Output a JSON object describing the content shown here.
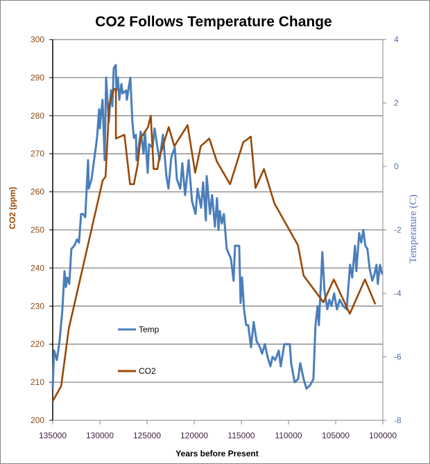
{
  "chart_data": {
    "type": "line",
    "title": "CO2 Follows Temperature Change",
    "xlabel": "Years before Present",
    "ylabel": "CO2 (ppm)",
    "y2label": "Temperature (C)",
    "xlim": [
      135000,
      100000
    ],
    "ylim": [
      200,
      300
    ],
    "y2lim": [
      -8,
      4
    ],
    "x_ticks": [
      "135000",
      "130000",
      "125000",
      "120000",
      "115000",
      "110000",
      "105000",
      "100000"
    ],
    "y_ticks": [
      "200",
      "210",
      "220",
      "230",
      "240",
      "250",
      "260",
      "270",
      "280",
      "290",
      "300"
    ],
    "y2_ticks": [
      "-8",
      "-6",
      "-4",
      "-2",
      "0",
      "2",
      "4"
    ],
    "grid": "horizontal major gridlines",
    "legend": "inside-left",
    "colors": {
      "temp": "#4a7ebb",
      "co2": "#984807",
      "grid": "#868686"
    },
    "series": [
      {
        "name": "Temp",
        "axis": "right",
        "x": [
          135000,
          134850,
          134560,
          134270,
          133970,
          133750,
          133600,
          133460,
          133240,
          133020,
          132720,
          132430,
          132210,
          131990,
          131770,
          131550,
          131250,
          131180,
          130880,
          130520,
          130300,
          130080,
          130000,
          129860,
          129710,
          129490,
          129340,
          129050,
          128830,
          128680,
          128530,
          128310,
          128240,
          128090,
          127940,
          127720,
          127580,
          127210,
          127140,
          126770,
          126550,
          126400,
          126180,
          126110,
          125890,
          125670,
          125370,
          125220,
          124930,
          124780,
          124420,
          124200,
          123900,
          123680,
          123310,
          122950,
          122730,
          122430,
          122060,
          121840,
          121480,
          121260,
          120960,
          120590,
          120230,
          119860,
          119640,
          119270,
          119050,
          118760,
          118680,
          118320,
          118100,
          117800,
          117580,
          117430,
          117290,
          117070,
          116850,
          116550,
          116110,
          115820,
          115670,
          115230,
          115080,
          114930,
          114710,
          114490,
          114270,
          113980,
          113690,
          113390,
          113020,
          112800,
          112510,
          112220,
          111920,
          111700,
          111410,
          111040,
          110820,
          110450,
          109860,
          109720,
          109350,
          108980,
          108760,
          108400,
          108100,
          107730,
          107360,
          107140,
          106920,
          106780,
          106410,
          106190,
          105890,
          105670,
          105450,
          105160,
          104870,
          104570,
          104200,
          103840,
          103470,
          103250,
          102950,
          102810,
          102510,
          102290,
          102070,
          101850,
          101630,
          101410,
          101120,
          100900,
          100680,
          100530,
          100310,
          100090
        ],
        "y": [
          -7.0,
          -5.8,
          -6.1,
          -5.5,
          -4.5,
          -3.3,
          -3.8,
          -3.5,
          -3.7,
          -2.6,
          -2.5,
          -2.3,
          -2.4,
          -1.5,
          -1.5,
          -1.6,
          0.2,
          -0.7,
          -0.4,
          0.4,
          0.9,
          1.8,
          1.2,
          1.7,
          2.1,
          0.2,
          2.8,
          1.4,
          2.4,
          1.9,
          3.1,
          3.2,
          2.4,
          2.8,
          2.1,
          2.6,
          2.3,
          2.4,
          2.1,
          2.8,
          1.4,
          0.9,
          1.0,
          0.2,
          0.6,
          1.1,
          0.4,
          1.1,
          -0.2,
          0.7,
          0.6,
          1.2,
          0.6,
          0.2,
          1.0,
          -0.3,
          -0.7,
          0.3,
          0.6,
          -0.4,
          -0.7,
          0.1,
          -0.9,
          0.2,
          -1.1,
          -1.5,
          -0.7,
          -1.3,
          -0.5,
          -1.7,
          -0.3,
          -1.5,
          -0.9,
          -1.9,
          -1.0,
          -2.0,
          -1.4,
          -1.8,
          -1.5,
          -2.6,
          -2.9,
          -3.6,
          -2.5,
          -2.5,
          -4.3,
          -3.5,
          -4.5,
          -5.0,
          -5.0,
          -5.7,
          -4.9,
          -5.5,
          -5.7,
          -5.9,
          -5.6,
          -6.0,
          -6.3,
          -6.0,
          -6.1,
          -5.8,
          -6.3,
          -5.6,
          -5.6,
          -6.2,
          -6.8,
          -6.7,
          -6.2,
          -6.7,
          -7.0,
          -6.9,
          -6.7,
          -5.0,
          -4.4,
          -5.0,
          -2.7,
          -3.9,
          -4.5,
          -4.2,
          -4.4,
          -4.0,
          -4.5,
          -4.2,
          -4.4,
          -4.5,
          -3.1,
          -3.5,
          -2.5,
          -3.3,
          -2.1,
          -2.4,
          -2.0,
          -2.5,
          -2.6,
          -3.2,
          -3.6,
          -3.4,
          -3.1,
          -3.7,
          -3.1,
          -3.4
        ]
      },
      {
        "name": "CO2",
        "axis": "left",
        "x": [
          135000,
          134100,
          133300,
          129700,
          129400,
          129000,
          128500,
          128300,
          128300,
          127400,
          126800,
          126400,
          126000,
          125700,
          124900,
          124600,
          124300,
          123900,
          123700,
          122700,
          122100,
          120700,
          119900,
          119300,
          118400,
          117600,
          116200,
          114800,
          114000,
          113500,
          112600,
          111500,
          109000,
          108400,
          106300,
          105200,
          103500,
          101900,
          100800
        ],
        "y": [
          205,
          209,
          224,
          263,
          264,
          283,
          287,
          287,
          274,
          275,
          262,
          262,
          267,
          274,
          277,
          280,
          266,
          266,
          269,
          277,
          272,
          277.5,
          265,
          272,
          274,
          268,
          262,
          273,
          274.5,
          261,
          266,
          257,
          246,
          238,
          231,
          237,
          228,
          237,
          230.5
        ]
      }
    ]
  }
}
